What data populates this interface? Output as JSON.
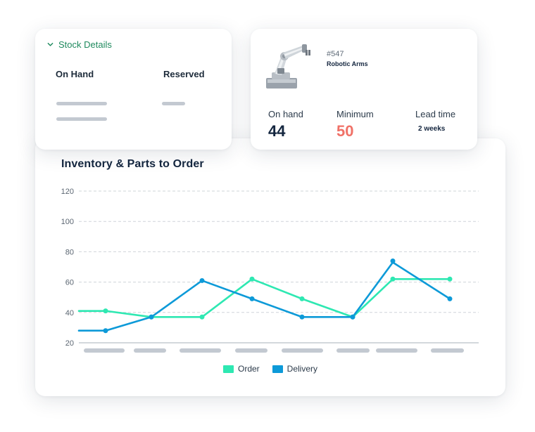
{
  "colors": {
    "order": "#2ee8b2",
    "delivery": "#0d9ad8",
    "accent_green": "#1f8a5e",
    "minimum_red": "#f07167",
    "dark_navy": "#14263f"
  },
  "stock_card": {
    "section_label": "Stock Details",
    "chevron_icon": "chevron-down-icon",
    "col_on_hand": "On Hand",
    "col_reserved": "Reserved"
  },
  "part_card": {
    "part_number": "#547",
    "part_name": "Robotic Arms",
    "image_icon": "robotic-arm-image",
    "on_hand_label": "On hand",
    "on_hand_value": "44",
    "minimum_label": "Minimum",
    "minimum_value": "50",
    "lead_time_label": "Lead time",
    "lead_time_value": "2 weeks"
  },
  "chart_data": {
    "type": "line",
    "title": "Inventory & Parts to Order",
    "xlabel": "",
    "ylabel": "",
    "ylim": [
      20,
      120
    ],
    "yticks": [
      20,
      40,
      60,
      80,
      100,
      120
    ],
    "grid": true,
    "legend_placement": "bottom",
    "x": [
      0,
      1,
      2,
      3,
      4,
      5,
      6,
      7,
      8
    ],
    "series": [
      {
        "name": "Order",
        "color": "#2ee8b2",
        "values": [
          41,
          41,
          37,
          37,
          62,
          49,
          37,
          62,
          62
        ],
        "points": [
          1,
          2,
          3,
          4,
          5,
          6,
          7,
          8
        ]
      },
      {
        "name": "Delivery",
        "color": "#0d9ad8",
        "values": [
          28,
          28,
          37,
          61,
          49,
          37,
          37,
          73,
          49
        ],
        "points": [
          1,
          2,
          3,
          4,
          5,
          6,
          7,
          8
        ]
      }
    ]
  }
}
